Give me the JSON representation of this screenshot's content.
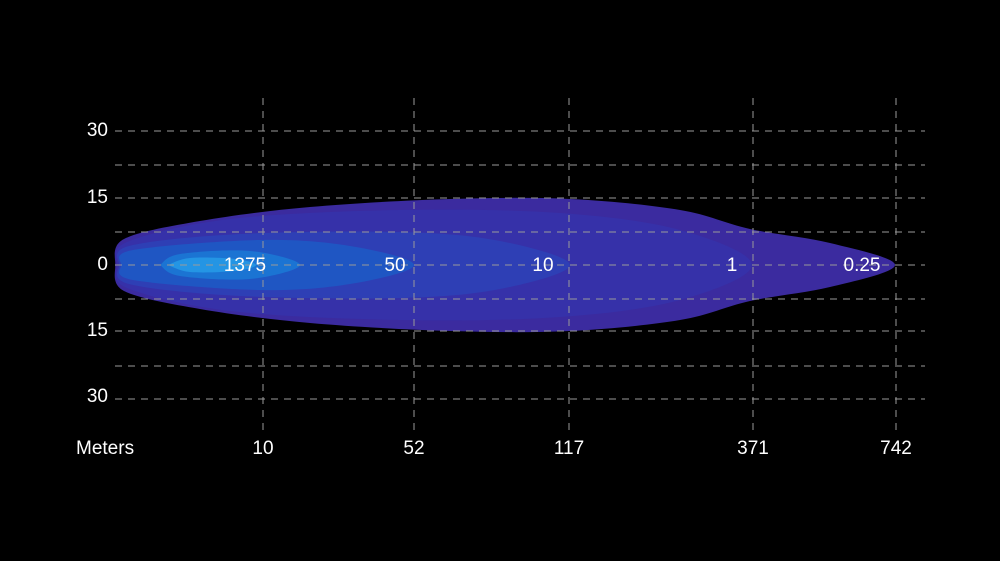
{
  "y_labels": [
    "30",
    "15",
    "0",
    "15",
    "30"
  ],
  "x_axis_label": "Meters",
  "x_labels": [
    "10",
    "52",
    "117",
    "371",
    "742"
  ],
  "contour_labels": [
    "1375",
    "50",
    "10",
    "1",
    "0.25"
  ]
}
